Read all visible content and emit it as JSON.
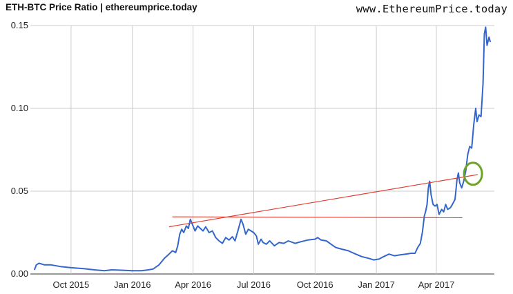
{
  "header": {
    "title": "ETH-BTC Price Ratio | ethereumprice.today",
    "site": "www.EthereumPrice.today"
  },
  "chart_data": {
    "type": "line",
    "title": "ETH-BTC Price Ratio | ethereumprice.today",
    "xlabel": "",
    "ylabel": "",
    "xlim": [
      "2015-08-01",
      "2017-06-27"
    ],
    "ylim": [
      0,
      0.15
    ],
    "grid": true,
    "x_ticks": [
      "2015-10-01",
      "2016-01-01",
      "2016-04-01",
      "2016-07-01",
      "2016-10-01",
      "2017-01-01",
      "2017-04-01"
    ],
    "x_tick_labels": [
      "Oct 2015",
      "Jan 2016",
      "Apr 2016",
      "Jul 2016",
      "Oct 2016",
      "Jan 2017",
      "Apr 2017"
    ],
    "y_ticks": [
      0,
      0.05,
      0.1,
      0.15
    ],
    "y_tick_labels": [
      "0.00",
      "0.05",
      "0.10",
      "0.15"
    ],
    "line_color": "#3366cc",
    "series": [
      {
        "points": [
          [
            "2015-08-07",
            0.0025
          ],
          [
            "2015-08-10",
            0.0055
          ],
          [
            "2015-08-14",
            0.0065
          ],
          [
            "2015-08-22",
            0.0055
          ],
          [
            "2015-09-01",
            0.0055
          ],
          [
            "2015-09-15",
            0.0045
          ],
          [
            "2015-10-01",
            0.0038
          ],
          [
            "2015-10-20",
            0.0032
          ],
          [
            "2015-11-05",
            0.0025
          ],
          [
            "2015-11-20",
            0.002
          ],
          [
            "2015-12-01",
            0.0025
          ],
          [
            "2015-12-15",
            0.0023
          ],
          [
            "2016-01-01",
            0.002
          ],
          [
            "2016-01-15",
            0.002
          ],
          [
            "2016-01-25",
            0.0025
          ],
          [
            "2016-02-01",
            0.003
          ],
          [
            "2016-02-10",
            0.0055
          ],
          [
            "2016-02-18",
            0.0095
          ],
          [
            "2016-02-25",
            0.012
          ],
          [
            "2016-03-01",
            0.014
          ],
          [
            "2016-03-06",
            0.013
          ],
          [
            "2016-03-09",
            0.017
          ],
          [
            "2016-03-12",
            0.024
          ],
          [
            "2016-03-15",
            0.027
          ],
          [
            "2016-03-18",
            0.025
          ],
          [
            "2016-03-22",
            0.029
          ],
          [
            "2016-03-25",
            0.0275
          ],
          [
            "2016-03-28",
            0.033
          ],
          [
            "2016-03-31",
            0.03
          ],
          [
            "2016-04-04",
            0.026
          ],
          [
            "2016-04-08",
            0.029
          ],
          [
            "2016-04-12",
            0.0275
          ],
          [
            "2016-04-16",
            0.026
          ],
          [
            "2016-04-20",
            0.0285
          ],
          [
            "2016-04-25",
            0.025
          ],
          [
            "2016-04-30",
            0.026
          ],
          [
            "2016-05-05",
            0.022
          ],
          [
            "2016-05-10",
            0.02
          ],
          [
            "2016-05-15",
            0.0185
          ],
          [
            "2016-05-20",
            0.022
          ],
          [
            "2016-05-25",
            0.0205
          ],
          [
            "2016-05-30",
            0.0225
          ],
          [
            "2016-06-03",
            0.02
          ],
          [
            "2016-06-08",
            0.027
          ],
          [
            "2016-06-12",
            0.033
          ],
          [
            "2016-06-15",
            0.03
          ],
          [
            "2016-06-19",
            0.024
          ],
          [
            "2016-06-23",
            0.027
          ],
          [
            "2016-06-27",
            0.026
          ],
          [
            "2016-07-01",
            0.025
          ],
          [
            "2016-07-05",
            0.023
          ],
          [
            "2016-07-08",
            0.018
          ],
          [
            "2016-07-12",
            0.021
          ],
          [
            "2016-07-15",
            0.019
          ],
          [
            "2016-07-20",
            0.018
          ],
          [
            "2016-07-25",
            0.02
          ],
          [
            "2016-08-01",
            0.017
          ],
          [
            "2016-08-08",
            0.019
          ],
          [
            "2016-08-15",
            0.0185
          ],
          [
            "2016-08-22",
            0.02
          ],
          [
            "2016-09-01",
            0.0185
          ],
          [
            "2016-09-10",
            0.0195
          ],
          [
            "2016-09-20",
            0.0205
          ],
          [
            "2016-10-01",
            0.021
          ],
          [
            "2016-10-05",
            0.022
          ],
          [
            "2016-10-10",
            0.0205
          ],
          [
            "2016-10-18",
            0.02
          ],
          [
            "2016-10-25",
            0.018
          ],
          [
            "2016-11-01",
            0.016
          ],
          [
            "2016-11-10",
            0.015
          ],
          [
            "2016-11-20",
            0.014
          ],
          [
            "2016-12-01",
            0.012
          ],
          [
            "2016-12-10",
            0.0105
          ],
          [
            "2016-12-20",
            0.0095
          ],
          [
            "2016-12-28",
            0.0085
          ],
          [
            "2017-01-05",
            0.009
          ],
          [
            "2017-01-12",
            0.0105
          ],
          [
            "2017-01-20",
            0.012
          ],
          [
            "2017-01-28",
            0.011
          ],
          [
            "2017-02-05",
            0.0115
          ],
          [
            "2017-02-14",
            0.012
          ],
          [
            "2017-02-22",
            0.0125
          ],
          [
            "2017-02-28",
            0.0125
          ],
          [
            "2017-03-04",
            0.016
          ],
          [
            "2017-03-08",
            0.0185
          ],
          [
            "2017-03-11",
            0.025
          ],
          [
            "2017-03-14",
            0.035
          ],
          [
            "2017-03-16",
            0.038
          ],
          [
            "2017-03-18",
            0.042
          ],
          [
            "2017-03-20",
            0.052
          ],
          [
            "2017-03-22",
            0.056
          ],
          [
            "2017-03-24",
            0.048
          ],
          [
            "2017-03-27",
            0.042
          ],
          [
            "2017-03-30",
            0.041
          ],
          [
            "2017-04-02",
            0.042
          ],
          [
            "2017-04-05",
            0.036
          ],
          [
            "2017-04-09",
            0.039
          ],
          [
            "2017-04-12",
            0.0375
          ],
          [
            "2017-04-15",
            0.042
          ],
          [
            "2017-04-18",
            0.039
          ],
          [
            "2017-04-22",
            0.04
          ],
          [
            "2017-04-25",
            0.042
          ],
          [
            "2017-04-29",
            0.045
          ],
          [
            "2017-05-02",
            0.057
          ],
          [
            "2017-05-04",
            0.061
          ],
          [
            "2017-05-06",
            0.055
          ],
          [
            "2017-05-09",
            0.052
          ],
          [
            "2017-05-12",
            0.056
          ],
          [
            "2017-05-15",
            0.062
          ],
          [
            "2017-05-18",
            0.072
          ],
          [
            "2017-05-21",
            0.077
          ],
          [
            "2017-05-24",
            0.076
          ],
          [
            "2017-05-27",
            0.09
          ],
          [
            "2017-05-30",
            0.1
          ],
          [
            "2017-06-01",
            0.092
          ],
          [
            "2017-06-04",
            0.096
          ],
          [
            "2017-06-07",
            0.095
          ],
          [
            "2017-06-10",
            0.115
          ],
          [
            "2017-06-12",
            0.145
          ],
          [
            "2017-06-14",
            0.149
          ],
          [
            "2017-06-16",
            0.138
          ],
          [
            "2017-06-19",
            0.143
          ],
          [
            "2017-06-21",
            0.14
          ]
        ]
      }
    ],
    "annotations": [
      {
        "kind": "trendline",
        "color": "#e03c31",
        "from": [
          "2016-02-25",
          0.0285
        ],
        "to": [
          "2017-06-02",
          0.06
        ]
      },
      {
        "kind": "trendline",
        "color": "#e03c31",
        "from": [
          "2016-03-01",
          0.0345
        ],
        "to": [
          "2017-05-10",
          0.034
        ]
      },
      {
        "kind": "circle",
        "color": "#6aa328",
        "center": [
          "2017-05-26",
          0.0605
        ]
      }
    ]
  }
}
